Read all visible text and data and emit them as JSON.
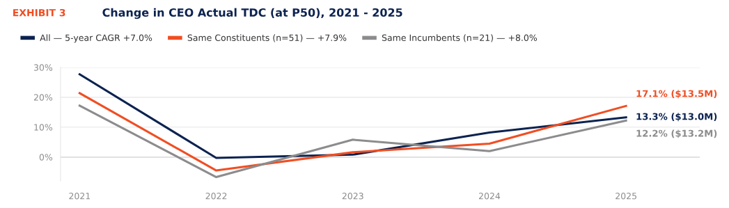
{
  "chart_data": {
    "type": "line",
    "title": "Change in CEO Actual TDC (at P50), 2021 - 2025",
    "subtitle": "EXHIBIT 3",
    "categories": [
      "2021",
      "2022",
      "2023",
      "2024",
      "2025"
    ],
    "series": [
      {
        "name": "All — 5-year CAGR +7.0%",
        "color": "#0c2350",
        "values": [
          27.7,
          -0.3,
          0.8,
          8.2,
          13.3
        ]
      },
      {
        "name": "Same Constituents (n=51) — +7.9%",
        "color": "#f04e23",
        "values": [
          21.4,
          -4.5,
          1.6,
          4.5,
          17.1
        ]
      },
      {
        "name": "Same Incumbents (n=21) — +8.0%",
        "color": "#8c8c8e",
        "values": [
          17.2,
          -6.7,
          5.8,
          2.0,
          12.2
        ]
      }
    ],
    "annotations": [
      {
        "text": "13.3% ($13.0M)",
        "x": "2025",
        "y": 13.3
      },
      {
        "text": "17.1% ($13.5M)",
        "x": "2025",
        "y": 17.1
      },
      {
        "text": "12.2% ($13.2M)",
        "x": "2025",
        "y": 12.2
      }
    ],
    "ylim": [
      -8,
      30
    ],
    "yticks": [
      {
        "value": 0,
        "label": "0%"
      },
      {
        "value": 10,
        "label": "10%"
      },
      {
        "value": 20,
        "label": "20%"
      },
      {
        "value": 30,
        "label": "30%"
      }
    ],
    "ref_lines": [
      {
        "axis": "y",
        "value": 0,
        "color": "#c8c8c8"
      }
    ],
    "grid": "y",
    "legend": "top left",
    "marker": "none",
    "line_style": "solid"
  }
}
